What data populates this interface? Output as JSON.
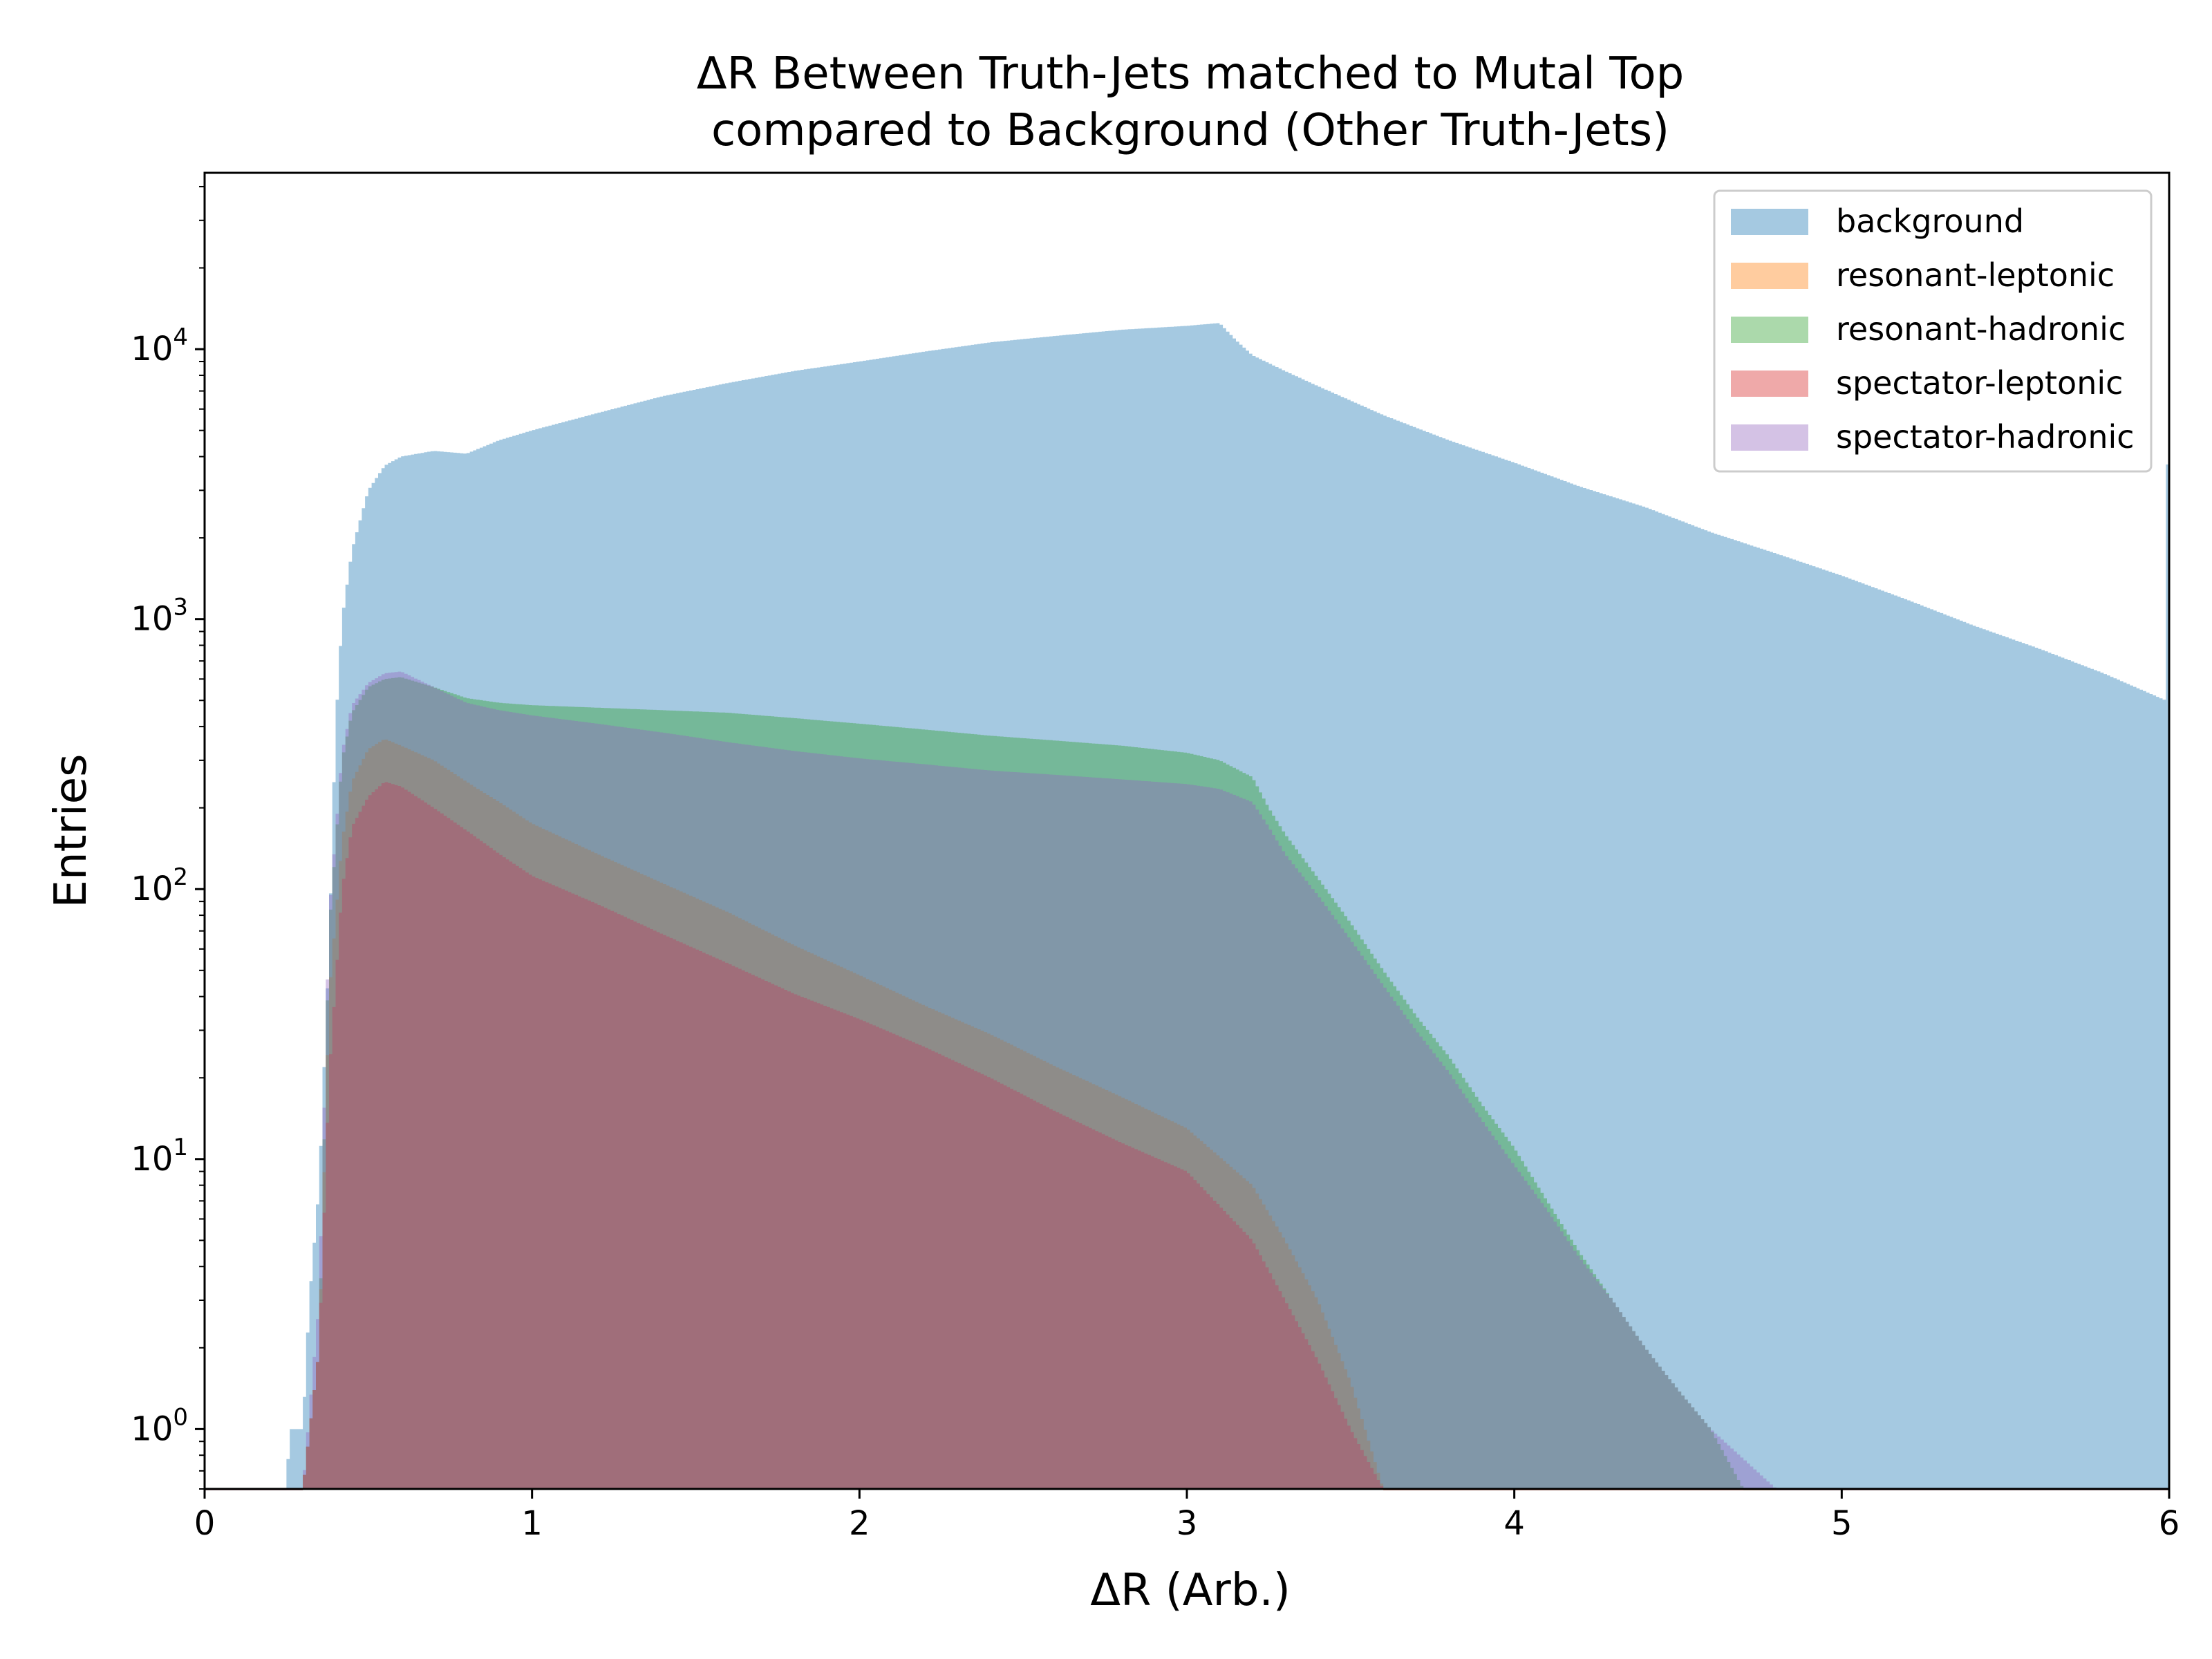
{
  "chart_data": {
    "type": "histogram",
    "title_line1": "ΔR Between Truth-Jets matched to Mutal Top",
    "title_line2": "compared to Background (Other Truth-Jets)",
    "xlabel": "ΔR (Arb.)",
    "ylabel": "Entries",
    "xlim": [
      0,
      6
    ],
    "ylim": [
      0.6,
      45000
    ],
    "yscale": "log",
    "grid": false,
    "legend_position": "top-right",
    "x_ticks": [
      {
        "value": 0,
        "label": "0"
      },
      {
        "value": 1,
        "label": "1"
      },
      {
        "value": 2,
        "label": "2"
      },
      {
        "value": 3,
        "label": "3"
      },
      {
        "value": 4,
        "label": "4"
      },
      {
        "value": 5,
        "label": "5"
      },
      {
        "value": 6,
        "label": "6"
      }
    ],
    "y_ticks": [
      {
        "value": 1,
        "base": "10",
        "exp": "0"
      },
      {
        "value": 10,
        "base": "10",
        "exp": "1"
      },
      {
        "value": 100,
        "base": "10",
        "exp": "2"
      },
      {
        "value": 1000,
        "base": "10",
        "exp": "3"
      },
      {
        "value": 10000,
        "base": "10",
        "exp": "4"
      }
    ],
    "series": [
      {
        "name": "background",
        "color": "#1f77b4",
        "opacity": 0.4,
        "points": [
          [
            0.25,
            0.6
          ],
          [
            0.26,
            1
          ],
          [
            0.3,
            1
          ],
          [
            0.32,
            3
          ],
          [
            0.35,
            8
          ],
          [
            0.38,
            60
          ],
          [
            0.4,
            400
          ],
          [
            0.42,
            1000
          ],
          [
            0.45,
            1800
          ],
          [
            0.5,
            3000
          ],
          [
            0.55,
            3700
          ],
          [
            0.6,
            4000
          ],
          [
            0.7,
            4200
          ],
          [
            0.8,
            4100
          ],
          [
            0.9,
            4600
          ],
          [
            1.0,
            5000
          ],
          [
            1.2,
            5800
          ],
          [
            1.4,
            6700
          ],
          [
            1.6,
            7500
          ],
          [
            1.8,
            8300
          ],
          [
            2.0,
            9000
          ],
          [
            2.2,
            9800
          ],
          [
            2.4,
            10600
          ],
          [
            2.6,
            11200
          ],
          [
            2.8,
            11800
          ],
          [
            3.0,
            12200
          ],
          [
            3.1,
            12500
          ],
          [
            3.15,
            10800
          ],
          [
            3.2,
            9500
          ],
          [
            3.3,
            8300
          ],
          [
            3.4,
            7300
          ],
          [
            3.6,
            5700
          ],
          [
            3.8,
            4600
          ],
          [
            4.0,
            3800
          ],
          [
            4.2,
            3100
          ],
          [
            4.4,
            2600
          ],
          [
            4.6,
            2100
          ],
          [
            4.8,
            1750
          ],
          [
            5.0,
            1450
          ],
          [
            5.2,
            1180
          ],
          [
            5.4,
            950
          ],
          [
            5.6,
            780
          ],
          [
            5.8,
            630
          ],
          [
            5.99,
            500
          ],
          [
            6.0,
            28000
          ]
        ]
      },
      {
        "name": "resonant-leptonic",
        "color": "#ff7f0e",
        "opacity": 0.4,
        "points": [
          [
            0.3,
            0.6
          ],
          [
            0.35,
            2
          ],
          [
            0.38,
            40
          ],
          [
            0.42,
            150
          ],
          [
            0.45,
            250
          ],
          [
            0.5,
            330
          ],
          [
            0.55,
            360
          ],
          [
            0.6,
            340
          ],
          [
            0.7,
            300
          ],
          [
            0.8,
            250
          ],
          [
            0.9,
            210
          ],
          [
            1.0,
            175
          ],
          [
            1.2,
            135
          ],
          [
            1.4,
            105
          ],
          [
            1.6,
            82
          ],
          [
            1.8,
            62
          ],
          [
            2.0,
            48
          ],
          [
            2.2,
            37
          ],
          [
            2.4,
            29
          ],
          [
            2.6,
            22
          ],
          [
            2.8,
            17
          ],
          [
            3.0,
            13
          ],
          [
            3.2,
            8
          ],
          [
            3.3,
            5
          ],
          [
            3.4,
            3
          ],
          [
            3.5,
            1.5
          ],
          [
            3.6,
            0.6
          ]
        ]
      },
      {
        "name": "resonant-hadronic",
        "color": "#2ca02c",
        "opacity": 0.4,
        "points": [
          [
            0.3,
            0.6
          ],
          [
            0.35,
            2
          ],
          [
            0.38,
            70
          ],
          [
            0.42,
            300
          ],
          [
            0.45,
            450
          ],
          [
            0.5,
            560
          ],
          [
            0.55,
            600
          ],
          [
            0.6,
            610
          ],
          [
            0.7,
            560
          ],
          [
            0.8,
            510
          ],
          [
            0.9,
            490
          ],
          [
            1.0,
            480
          ],
          [
            1.2,
            470
          ],
          [
            1.4,
            460
          ],
          [
            1.6,
            450
          ],
          [
            1.8,
            430
          ],
          [
            2.0,
            410
          ],
          [
            2.2,
            390
          ],
          [
            2.4,
            370
          ],
          [
            2.6,
            355
          ],
          [
            2.8,
            340
          ],
          [
            3.0,
            320
          ],
          [
            3.1,
            300
          ],
          [
            3.2,
            260
          ],
          [
            3.25,
            200
          ],
          [
            3.3,
            160
          ],
          [
            3.4,
            110
          ],
          [
            3.5,
            75
          ],
          [
            3.6,
            50
          ],
          [
            3.7,
            34
          ],
          [
            3.8,
            24
          ],
          [
            3.9,
            16
          ],
          [
            4.0,
            11
          ],
          [
            4.1,
            7
          ],
          [
            4.2,
            4.5
          ],
          [
            4.3,
            3
          ],
          [
            4.4,
            2
          ],
          [
            4.5,
            1.4
          ],
          [
            4.6,
            1
          ],
          [
            4.7,
            0.6
          ]
        ]
      },
      {
        "name": "spectator-leptonic",
        "color": "#d62728",
        "opacity": 0.4,
        "points": [
          [
            0.3,
            0.6
          ],
          [
            0.35,
            2
          ],
          [
            0.38,
            20
          ],
          [
            0.42,
            100
          ],
          [
            0.45,
            170
          ],
          [
            0.5,
            220
          ],
          [
            0.55,
            250
          ],
          [
            0.6,
            240
          ],
          [
            0.7,
            200
          ],
          [
            0.8,
            165
          ],
          [
            0.9,
            135
          ],
          [
            1.0,
            112
          ],
          [
            1.2,
            88
          ],
          [
            1.4,
            68
          ],
          [
            1.6,
            53
          ],
          [
            1.8,
            41
          ],
          [
            2.0,
            33
          ],
          [
            2.2,
            26
          ],
          [
            2.4,
            20
          ],
          [
            2.6,
            15
          ],
          [
            2.8,
            11.5
          ],
          [
            3.0,
            9
          ],
          [
            3.2,
            5
          ],
          [
            3.3,
            3
          ],
          [
            3.4,
            1.8
          ],
          [
            3.5,
            1
          ],
          [
            3.6,
            0.6
          ]
        ]
      },
      {
        "name": "spectator-hadronic",
        "color": "#9467bd",
        "opacity": 0.4,
        "points": [
          [
            0.3,
            0.6
          ],
          [
            0.35,
            3
          ],
          [
            0.38,
            80
          ],
          [
            0.42,
            320
          ],
          [
            0.45,
            480
          ],
          [
            0.5,
            580
          ],
          [
            0.55,
            630
          ],
          [
            0.6,
            640
          ],
          [
            0.7,
            560
          ],
          [
            0.8,
            490
          ],
          [
            0.9,
            460
          ],
          [
            1.0,
            440
          ],
          [
            1.2,
            410
          ],
          [
            1.4,
            380
          ],
          [
            1.6,
            350
          ],
          [
            1.8,
            325
          ],
          [
            2.0,
            305
          ],
          [
            2.2,
            290
          ],
          [
            2.4,
            275
          ],
          [
            2.6,
            265
          ],
          [
            2.8,
            255
          ],
          [
            3.0,
            245
          ],
          [
            3.1,
            235
          ],
          [
            3.2,
            210
          ],
          [
            3.25,
            170
          ],
          [
            3.3,
            135
          ],
          [
            3.4,
            95
          ],
          [
            3.5,
            65
          ],
          [
            3.6,
            44
          ],
          [
            3.7,
            30
          ],
          [
            3.8,
            21
          ],
          [
            3.9,
            14
          ],
          [
            4.0,
            9.5
          ],
          [
            4.1,
            6.5
          ],
          [
            4.2,
            4.3
          ],
          [
            4.3,
            3
          ],
          [
            4.4,
            2
          ],
          [
            4.5,
            1.4
          ],
          [
            4.6,
            1
          ],
          [
            4.8,
            0.6
          ]
        ]
      }
    ]
  }
}
